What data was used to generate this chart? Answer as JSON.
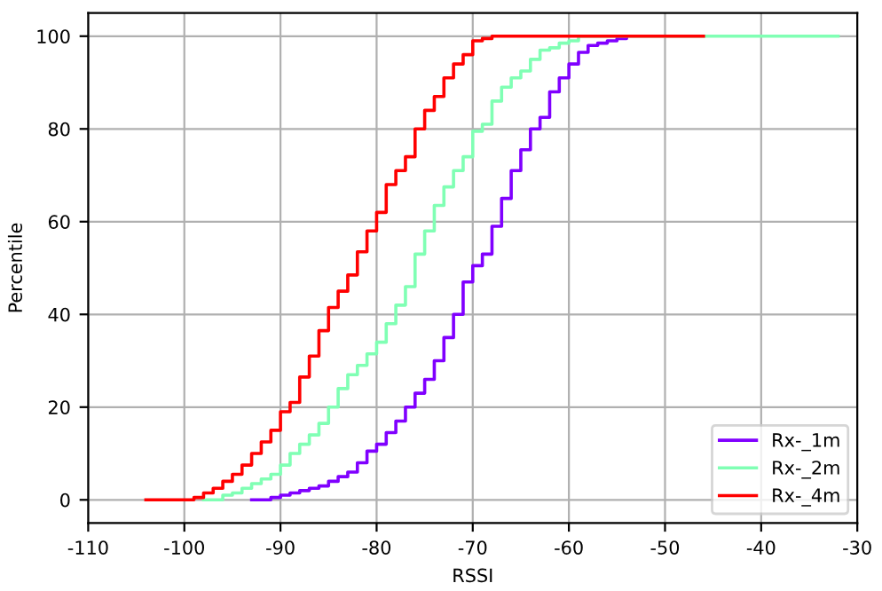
{
  "chart_data": {
    "type": "step",
    "xlabel": "RSSI",
    "ylabel": "Percentile",
    "xlim": [
      -110,
      -30
    ],
    "ylim": [
      -5,
      105
    ],
    "xticks": [
      -110,
      -100,
      -90,
      -80,
      -70,
      -60,
      -50,
      -40,
      -30
    ],
    "yticks": [
      0,
      20,
      40,
      60,
      80,
      100
    ],
    "grid": true,
    "legend": "bottom right",
    "series": [
      {
        "name": "Rx-_1m",
        "color": "#8000ff",
        "x": [
          -93,
          -91,
          -90,
          -89,
          -88,
          -87,
          -86,
          -85,
          -84,
          -83,
          -82,
          -81,
          -80,
          -79,
          -78,
          -77,
          -76,
          -75,
          -74,
          -73,
          -72,
          -71,
          -70,
          -69,
          -68,
          -67,
          -66,
          -65,
          -64,
          -63,
          -62,
          -61,
          -60,
          -59,
          -58,
          -57,
          -56,
          -55,
          -54
        ],
        "values": [
          0,
          0.5,
          1,
          1.5,
          2,
          2.5,
          3,
          4,
          5,
          6,
          8,
          10.5,
          12,
          14.5,
          17,
          20,
          23,
          26,
          30,
          35,
          40,
          47,
          50.5,
          53,
          59,
          65,
          71,
          75.5,
          80,
          82.5,
          88,
          91,
          94,
          96.5,
          98,
          98.5,
          99,
          99.5,
          100
        ]
      },
      {
        "name": "Rx-_2m",
        "color": "#80ffb4",
        "x": [
          -98,
          -96,
          -95,
          -94,
          -93,
          -92,
          -91,
          -90,
          -89,
          -88,
          -87,
          -86,
          -85,
          -84,
          -83,
          -82,
          -81,
          -80,
          -79,
          -78,
          -77,
          -76,
          -75,
          -74,
          -73,
          -72,
          -71,
          -70,
          -69,
          -68,
          -67,
          -66,
          -65,
          -64,
          -63,
          -62,
          -61,
          -60,
          -59,
          -32
        ],
        "values": [
          0,
          1,
          1.5,
          2.5,
          3.5,
          4.5,
          5.5,
          7.5,
          10,
          12,
          14,
          16.5,
          20,
          24,
          27,
          29,
          31.5,
          34,
          38,
          42,
          46,
          53,
          58,
          63.5,
          67.5,
          71,
          74,
          79.5,
          81,
          86,
          89,
          91,
          92.5,
          95,
          97,
          97.5,
          98.5,
          99,
          100,
          100
        ]
      },
      {
        "name": "Rx-_4m",
        "color": "#ff0000",
        "x": [
          -104,
          -99,
          -98,
          -97,
          -96,
          -95,
          -94,
          -93,
          -92,
          -91,
          -90,
          -89,
          -88,
          -87,
          -86,
          -85,
          -84,
          -83,
          -82,
          -81,
          -80,
          -79,
          -78,
          -77,
          -76,
          -75,
          -74,
          -73,
          -72,
          -71,
          -70,
          -69,
          -68,
          -46
        ],
        "values": [
          0,
          0.5,
          1.5,
          2.5,
          4,
          5.5,
          7.5,
          10,
          12.5,
          15,
          19,
          21,
          26.5,
          31,
          36.5,
          41.5,
          45,
          48.5,
          53.5,
          58,
          62,
          68,
          71,
          74,
          80,
          84,
          87,
          91,
          94,
          96,
          99,
          99.5,
          100,
          100
        ]
      }
    ]
  }
}
